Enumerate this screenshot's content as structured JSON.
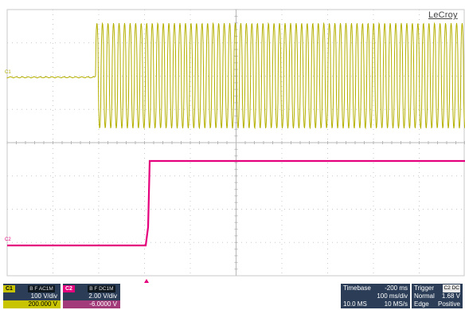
{
  "brand": "LeCroy",
  "markers": {
    "c1": "C1",
    "c2": "C2"
  },
  "colors": {
    "c1_trace": "#b5b000",
    "c2_trace": "#e5007d",
    "grid": "#c8c8c8"
  },
  "channel1": {
    "tag": "C1",
    "flags": "B F AC1M",
    "scale": "100 V/div",
    "offset": "200.000 V"
  },
  "channel2": {
    "tag": "C2",
    "flags": "B F DC1M",
    "scale": "2.00 V/div",
    "offset": "-6.0000 V"
  },
  "timebase": {
    "label": "Timebase",
    "delay": "-200 ms",
    "per_div": "100 ms/div",
    "samples": "10.0 MS",
    "rate": "10 MS/s"
  },
  "trigger": {
    "label": "Trigger",
    "channel": "C2 DC",
    "mode": "Normal",
    "level": "1.68 V",
    "type": "Edge",
    "slope": "Positive"
  }
}
